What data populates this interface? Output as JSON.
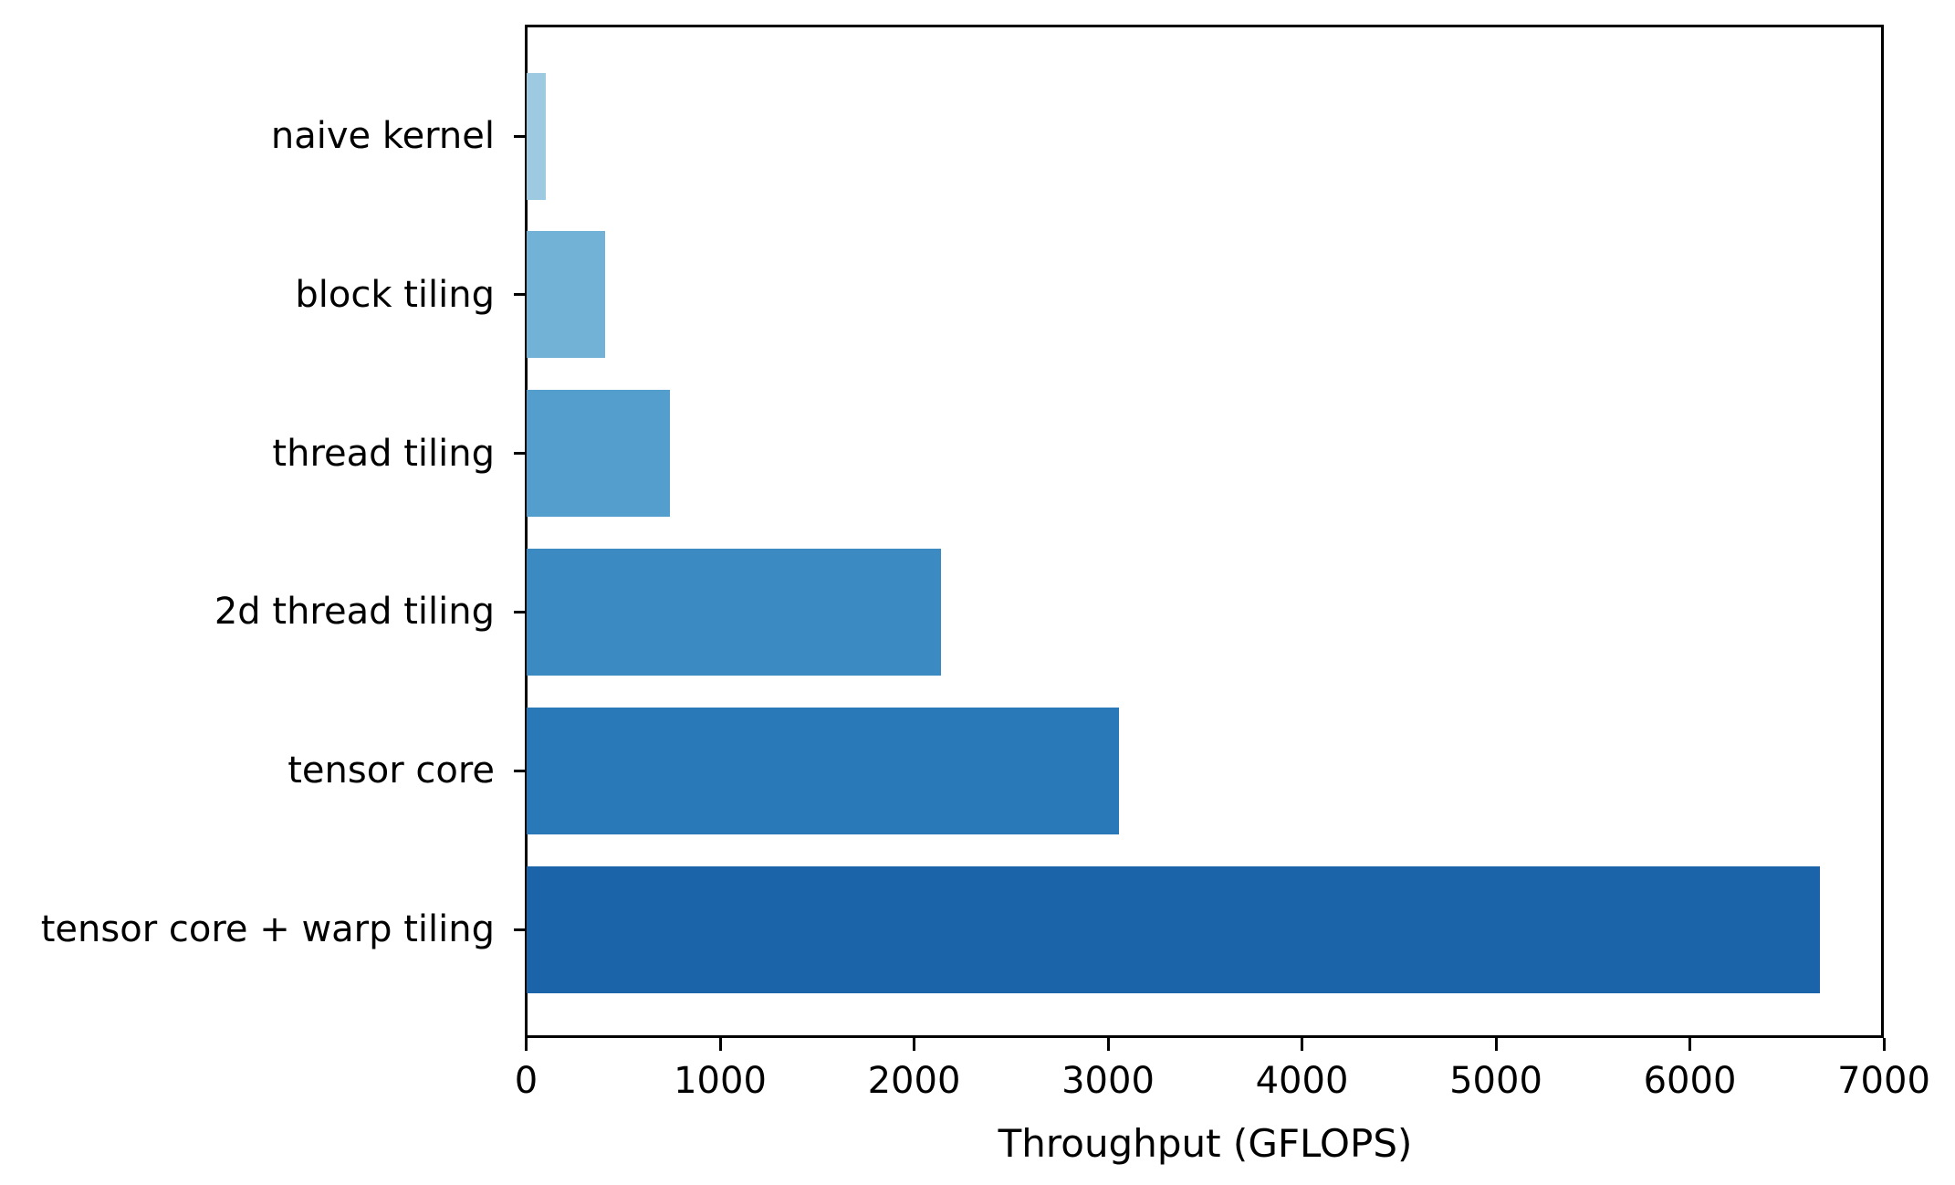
{
  "chart_data": {
    "type": "bar",
    "orientation": "horizontal",
    "title": "",
    "xlabel": "Throughput (GFLOPS)",
    "ylabel": "",
    "categories": [
      "naive kernel",
      "block tiling",
      "thread tiling",
      "2d thread tiling",
      "tensor core",
      "tensor core + warp tiling"
    ],
    "values": [
      100,
      405,
      740,
      2140,
      3055,
      6670
    ],
    "bar_colors": [
      "#9dc9e1",
      "#72b2d7",
      "#539ecc",
      "#3b8bc2",
      "#2979b9",
      "#1c64aa"
    ],
    "xlim": [
      0,
      7000
    ],
    "xticks": [
      0,
      1000,
      2000,
      3000,
      4000,
      5000,
      6000,
      7000
    ],
    "grid": false,
    "legend": null,
    "spine_color": "#000000",
    "text_color": "#000000"
  }
}
